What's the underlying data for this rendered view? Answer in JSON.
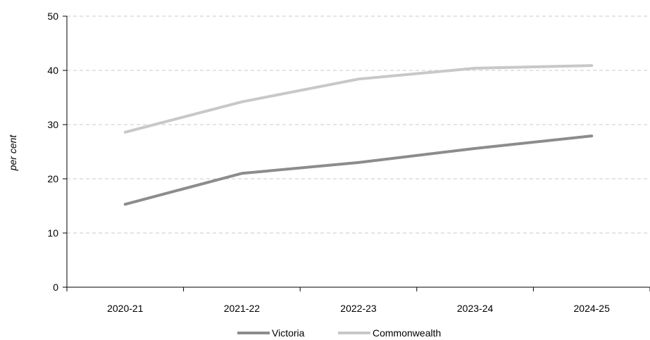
{
  "chart_data": {
    "type": "line",
    "categories": [
      "2020-21",
      "2021-22",
      "2022-23",
      "2023-24",
      "2024-25"
    ],
    "series": [
      {
        "name": "Victoria",
        "values": [
          15.3,
          21.0,
          23.0,
          25.6,
          27.9
        ],
        "color": "#8c8c8c"
      },
      {
        "name": "Commonwealth",
        "values": [
          28.6,
          34.2,
          38.4,
          40.4,
          40.9
        ],
        "color": "#c8c8c8"
      }
    ],
    "title": "",
    "xlabel": "",
    "ylabel": "per cent",
    "ylim": [
      0,
      50
    ],
    "yticks": [
      0,
      10,
      20,
      30,
      40,
      50
    ],
    "grid": "horizontal dashed",
    "legend": "bottom-center"
  }
}
